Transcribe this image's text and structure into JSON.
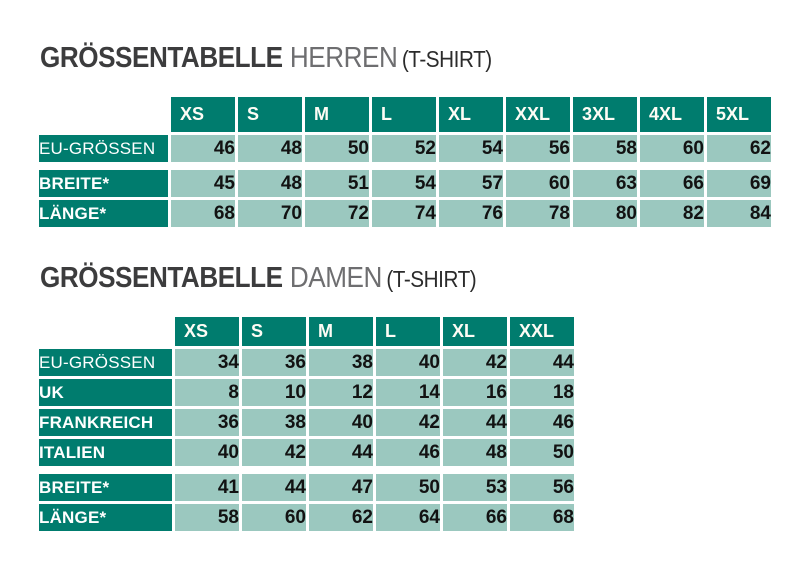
{
  "colors": {
    "dark_teal": "#007c6e",
    "light_teal": "#9bc8bf",
    "title_bold": "#3c3c3d",
    "title_light": "#6e6e70",
    "title_suffix": "#2b2b2b"
  },
  "tables": [
    {
      "id": "herren",
      "title_bold": "GRÖSSENTABELLE",
      "title_light": "HERREN",
      "title_suffix": "(T-SHIRT)",
      "columns": [
        "XS",
        "S",
        "M",
        "L",
        "XL",
        "XXL",
        "3XL",
        "4XL",
        "5XL"
      ],
      "rows": [
        {
          "label": "EU-GRÖSSEN",
          "values": [
            46,
            48,
            50,
            52,
            54,
            56,
            58,
            60,
            62
          ]
        },
        {
          "label": "BREITE*",
          "gap_before": true,
          "values": [
            45,
            48,
            51,
            54,
            57,
            60,
            63,
            66,
            69
          ]
        },
        {
          "label": "LÄNGE*",
          "values": [
            68,
            70,
            72,
            74,
            76,
            78,
            80,
            82,
            84
          ]
        }
      ]
    },
    {
      "id": "damen",
      "title_bold": "GRÖSSENTABELLE",
      "title_light": "DAMEN",
      "title_suffix": "(T-SHIRT)",
      "columns": [
        "XS",
        "S",
        "M",
        "L",
        "XL",
        "XXL"
      ],
      "rows": [
        {
          "label": "EU-GRÖSSEN",
          "values": [
            34,
            36,
            38,
            40,
            42,
            44
          ]
        },
        {
          "label": "UK",
          "values": [
            8,
            10,
            12,
            14,
            16,
            18
          ]
        },
        {
          "label": "FRANKREICH",
          "values": [
            36,
            38,
            40,
            42,
            44,
            46
          ]
        },
        {
          "label": "ITALIEN",
          "values": [
            40,
            42,
            44,
            46,
            48,
            50
          ]
        },
        {
          "label": "BREITE*",
          "gap_before": true,
          "values": [
            41,
            44,
            47,
            50,
            53,
            56
          ]
        },
        {
          "label": "LÄNGE*",
          "values": [
            58,
            60,
            62,
            64,
            66,
            68
          ]
        }
      ]
    }
  ]
}
